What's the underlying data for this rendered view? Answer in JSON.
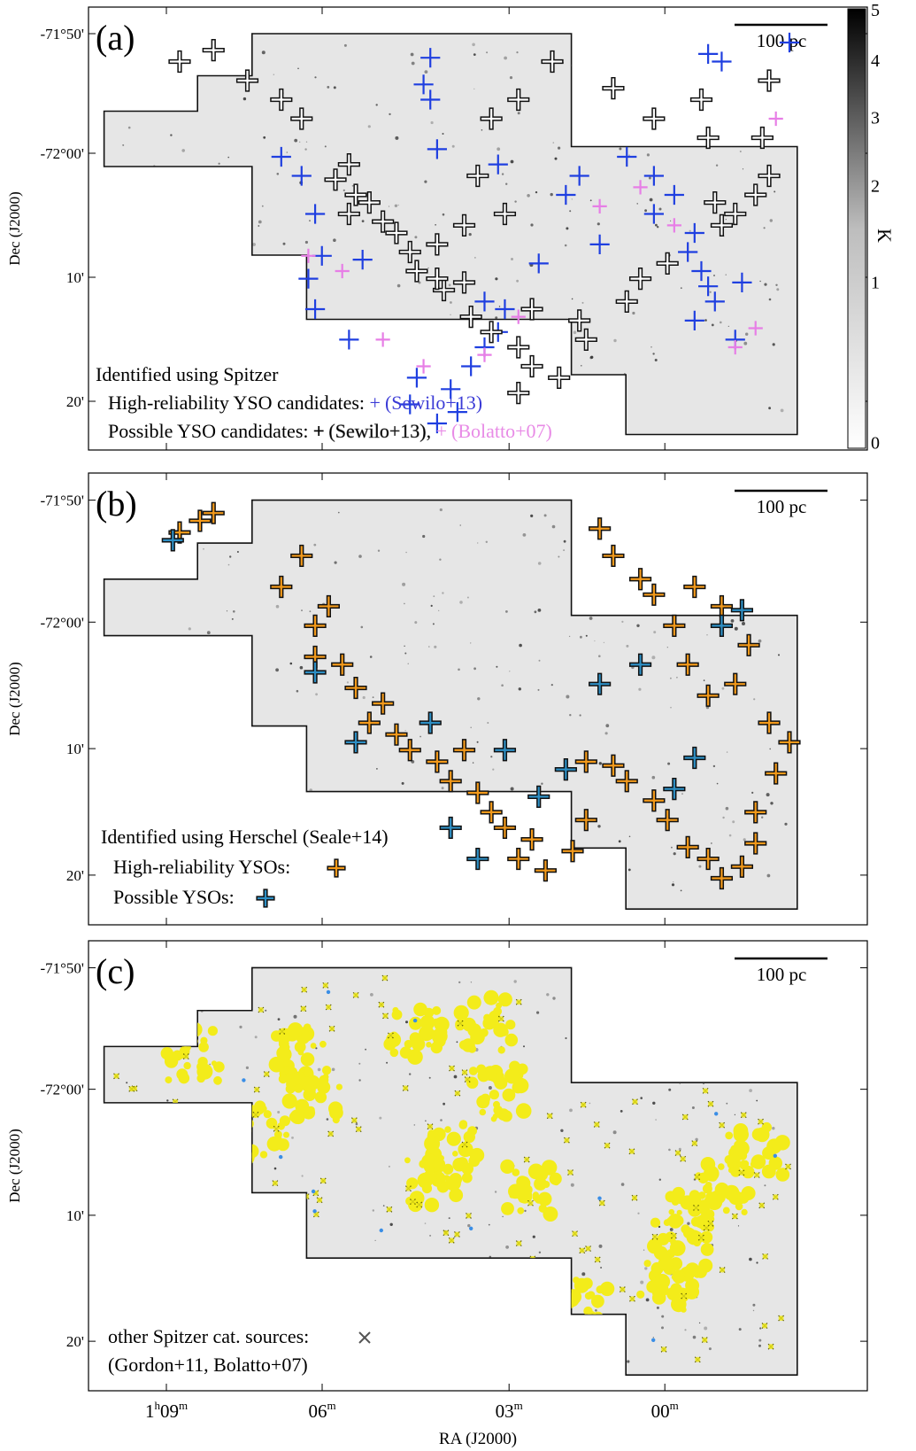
{
  "figure": {
    "dec_axis_label": "Dec (J2000)",
    "ra_axis_label": "RA (J2000)",
    "colorbar_label": "K"
  },
  "colors": {
    "map_bg": "#e6e6e6",
    "blue_cross": "#1f3fe0",
    "white_cross": "#ffffff",
    "pink_cross": "#e77ee6",
    "orange_cross": "#f39a1b",
    "lightblue_cross": "#2e8fc4",
    "yellow_cluster": "#f3ec1a",
    "dark_text_blue": "#3b3bd6",
    "pink_text": "#e88be6"
  },
  "chart_data": [
    {
      "panel": "(a)",
      "type": "scatter",
      "scalebar": "100 pc",
      "dec_ticks": [
        "-71°50'",
        "-72°00'",
        "10'",
        "20'"
      ],
      "legend": {
        "title": "Identified using Spitzer",
        "line1_prefix": "High-reliability YSO candidates: ",
        "line1_marker": "+",
        "line1_ref": "(Sewilo+13)",
        "line2_prefix": "Possible YSO candidates: ",
        "line2_marker": "+",
        "line2_ref1": "(Sewilo+13)",
        "line2_sep": ", ",
        "line2_marker2": "+",
        "line2_ref2": "(Bolatto+07)"
      },
      "colorbar": {
        "ticks": [
          "5",
          "4",
          "3",
          "2",
          "1",
          "0"
        ],
        "range": [
          0,
          5
        ]
      },
      "series": [
        {
          "name": "High-reliability YSO candidates (Sewilo+13)",
          "color": "blue",
          "points": [
            [
              0.9,
              0.05
            ],
            [
              0.88,
              0.03
            ],
            [
              1.0,
              0.0
            ],
            [
              0.57,
              0.32
            ],
            [
              0.55,
              0.68
            ],
            [
              0.57,
              0.76
            ],
            [
              0.58,
              0.7
            ],
            [
              0.55,
              0.8
            ],
            [
              0.53,
              0.85
            ],
            [
              0.5,
              0.91
            ],
            [
              0.51,
              0.97
            ],
            [
              0.48,
              1.0
            ],
            [
              0.44,
              0.95
            ],
            [
              0.45,
              0.88
            ],
            [
              0.35,
              0.78
            ],
            [
              0.3,
              0.7
            ],
            [
              0.29,
              0.62
            ],
            [
              0.31,
              0.56
            ],
            [
              0.3,
              0.45
            ],
            [
              0.28,
              0.35
            ],
            [
              0.25,
              0.3
            ],
            [
              0.37,
              0.57
            ],
            [
              0.48,
              0.28
            ],
            [
              0.47,
              0.15
            ],
            [
              0.46,
              0.11
            ],
            [
              0.47,
              0.04
            ],
            [
              0.63,
              0.58
            ],
            [
              0.67,
              0.4
            ],
            [
              0.72,
              0.53
            ],
            [
              0.69,
              0.35
            ],
            [
              0.76,
              0.3
            ],
            [
              0.8,
              0.35
            ],
            [
              0.8,
              0.45
            ],
            [
              0.83,
              0.4
            ],
            [
              0.86,
              0.5
            ],
            [
              0.85,
              0.55
            ],
            [
              0.87,
              0.6
            ],
            [
              0.88,
              0.64
            ],
            [
              0.89,
              0.68
            ],
            [
              0.86,
              0.73
            ],
            [
              0.92,
              0.78
            ],
            [
              0.93,
              0.63
            ]
          ]
        },
        {
          "name": "Possible YSO candidates (Sewilo+13)",
          "color": "white",
          "points": [
            [
              0.1,
              0.05
            ],
            [
              0.15,
              0.02
            ],
            [
              0.2,
              0.1
            ],
            [
              0.28,
              0.2
            ],
            [
              0.25,
              0.15
            ],
            [
              0.35,
              0.32
            ],
            [
              0.33,
              0.36
            ],
            [
              0.36,
              0.4
            ],
            [
              0.38,
              0.42
            ],
            [
              0.35,
              0.45
            ],
            [
              0.4,
              0.47
            ],
            [
              0.42,
              0.5
            ],
            [
              0.44,
              0.55
            ],
            [
              0.48,
              0.53
            ],
            [
              0.45,
              0.6
            ],
            [
              0.49,
              0.65
            ],
            [
              0.52,
              0.63
            ],
            [
              0.53,
              0.72
            ],
            [
              0.56,
              0.76
            ],
            [
              0.6,
              0.8
            ],
            [
              0.62,
              0.85
            ],
            [
              0.6,
              0.92
            ],
            [
              0.66,
              0.88
            ],
            [
              0.7,
              0.78
            ],
            [
              0.69,
              0.73
            ],
            [
              0.76,
              0.68
            ],
            [
              0.78,
              0.62
            ],
            [
              0.82,
              0.58
            ],
            [
              0.9,
              0.48
            ],
            [
              0.95,
              0.4
            ],
            [
              0.97,
              0.1
            ],
            [
              0.96,
              0.25
            ],
            [
              0.97,
              0.35
            ],
            [
              0.92,
              0.45
            ],
            [
              0.89,
              0.42
            ],
            [
              0.88,
              0.25
            ],
            [
              0.87,
              0.15
            ],
            [
              0.8,
              0.2
            ],
            [
              0.74,
              0.12
            ],
            [
              0.65,
              0.05
            ],
            [
              0.6,
              0.15
            ],
            [
              0.56,
              0.2
            ],
            [
              0.54,
              0.35
            ],
            [
              0.58,
              0.45
            ],
            [
              0.52,
              0.48
            ],
            [
              0.48,
              0.62
            ],
            [
              0.62,
              0.7
            ]
          ]
        },
        {
          "name": "Possible YSO candidates (Bolatto+07)",
          "color": "pink",
          "points": [
            [
              0.29,
              0.56
            ],
            [
              0.34,
              0.6
            ],
            [
              0.4,
              0.78
            ],
            [
              0.46,
              0.85
            ],
            [
              0.55,
              0.82
            ],
            [
              0.6,
              0.72
            ],
            [
              0.72,
              0.43
            ],
            [
              0.78,
              0.38
            ],
            [
              0.83,
              0.48
            ],
            [
              0.95,
              0.75
            ],
            [
              0.92,
              0.8
            ],
            [
              0.98,
              0.2
            ]
          ]
        }
      ]
    },
    {
      "panel": "(b)",
      "type": "scatter",
      "scalebar": "100 pc",
      "dec_ticks": [
        "-71°50'",
        "-72°00'",
        "10'",
        "20'"
      ],
      "legend": {
        "title": "Identified using Herschel (Seale+14)",
        "line1_prefix": "High-reliability YSOs:",
        "line2_prefix": "Possible YSOs:"
      },
      "series": [
        {
          "name": "High-reliability YSOs",
          "color": "orange",
          "points": [
            [
              0.1,
              0.06
            ],
            [
              0.13,
              0.03
            ],
            [
              0.15,
              0.01
            ],
            [
              0.25,
              0.2
            ],
            [
              0.28,
              0.12
            ],
            [
              0.3,
              0.3
            ],
            [
              0.32,
              0.25
            ],
            [
              0.3,
              0.38
            ],
            [
              0.34,
              0.4
            ],
            [
              0.36,
              0.46
            ],
            [
              0.4,
              0.5
            ],
            [
              0.38,
              0.55
            ],
            [
              0.42,
              0.58
            ],
            [
              0.44,
              0.62
            ],
            [
              0.48,
              0.65
            ],
            [
              0.52,
              0.62
            ],
            [
              0.5,
              0.7
            ],
            [
              0.54,
              0.73
            ],
            [
              0.56,
              0.78
            ],
            [
              0.58,
              0.82
            ],
            [
              0.62,
              0.85
            ],
            [
              0.6,
              0.9
            ],
            [
              0.64,
              0.93
            ],
            [
              0.68,
              0.88
            ],
            [
              0.7,
              0.8
            ],
            [
              0.7,
              0.65
            ],
            [
              0.74,
              0.66
            ],
            [
              0.76,
              0.7
            ],
            [
              0.8,
              0.75
            ],
            [
              0.82,
              0.8
            ],
            [
              0.85,
              0.87
            ],
            [
              0.88,
              0.9
            ],
            [
              0.9,
              0.95
            ],
            [
              0.93,
              0.92
            ],
            [
              0.95,
              0.86
            ],
            [
              0.95,
              0.78
            ],
            [
              0.98,
              0.68
            ],
            [
              1.0,
              0.6
            ],
            [
              0.97,
              0.55
            ],
            [
              0.92,
              0.45
            ],
            [
              0.88,
              0.48
            ],
            [
              0.85,
              0.4
            ],
            [
              0.83,
              0.3
            ],
            [
              0.8,
              0.22
            ],
            [
              0.78,
              0.18
            ],
            [
              0.74,
              0.12
            ],
            [
              0.72,
              0.05
            ],
            [
              0.86,
              0.2
            ],
            [
              0.9,
              0.25
            ],
            [
              0.94,
              0.35
            ]
          ]
        },
        {
          "name": "Possible YSOs",
          "color": "lightblue",
          "points": [
            [
              0.09,
              0.08
            ],
            [
              0.3,
              0.42
            ],
            [
              0.36,
              0.6
            ],
            [
              0.47,
              0.55
            ],
            [
              0.5,
              0.82
            ],
            [
              0.54,
              0.9
            ],
            [
              0.58,
              0.62
            ],
            [
              0.63,
              0.74
            ],
            [
              0.67,
              0.67
            ],
            [
              0.72,
              0.45
            ],
            [
              0.78,
              0.4
            ],
            [
              0.83,
              0.72
            ],
            [
              0.86,
              0.64
            ],
            [
              0.9,
              0.3
            ],
            [
              0.93,
              0.26
            ]
          ]
        }
      ]
    },
    {
      "panel": "(c)",
      "type": "scatter",
      "scalebar": "100 pc",
      "dec_ticks": [
        "-71°50'",
        "-72°00'",
        "10'",
        "20'"
      ],
      "ra_ticks": [
        {
          "main": "1",
          "sup1": "h",
          "mid": "09",
          "sup2": "m"
        },
        {
          "main": "",
          "sup1": "",
          "mid": "06",
          "sup2": "m"
        },
        {
          "main": "",
          "sup1": "",
          "mid": "03",
          "sup2": "m"
        },
        {
          "main": "",
          "sup1": "",
          "mid": "00",
          "sup2": "m"
        }
      ],
      "legend": {
        "line1_prefix": "other Spitzer cat. sources:",
        "line2": "(Gordon+11, Bolatto+07)"
      },
      "series": [
        {
          "name": "other Spitzer cat. sources",
          "color": "yellow"
        }
      ]
    }
  ]
}
